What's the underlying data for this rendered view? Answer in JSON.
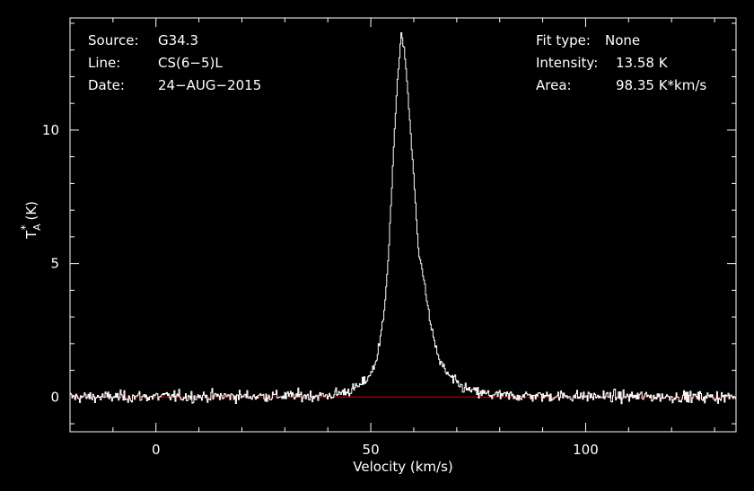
{
  "chart_data": {
    "type": "line",
    "xlabel": "Velocity (km/s)",
    "ylabel": "T",
    "ylabel_sub": "A",
    "ylabel_sup": "*",
    "ylabel_unit": "(K)",
    "xlim": [
      -20,
      135
    ],
    "ylim": [
      -1.3,
      14.2
    ],
    "xticks": [
      0,
      50,
      100
    ],
    "yticks": [
      0,
      5,
      10
    ],
    "grid": false,
    "colors": {
      "background": "#000000",
      "spectrum": "#ffffff",
      "baseline": "#cc0000",
      "axes": "#ffffff"
    },
    "baseline_value": 0,
    "info_left": [
      {
        "label": "Source:",
        "value": "G34.3"
      },
      {
        "label": "Line:",
        "value": "CS(6−5)L"
      },
      {
        "label": "Date:",
        "value": "24−AUG−2015"
      }
    ],
    "info_right": [
      {
        "label": "Fit type:",
        "value": "None"
      },
      {
        "label": "Intensity:",
        "value": "13.58 K"
      },
      {
        "label": "Area:",
        "value": "98.35 K*km/s"
      }
    ],
    "series": [
      {
        "noise_sigma": 0.15,
        "x": [
          -20,
          40,
          44,
          46,
          48,
          50,
          51,
          52,
          53,
          54,
          55,
          56,
          57,
          58,
          59,
          60,
          61,
          62,
          63,
          64,
          65,
          66,
          68,
          70,
          72,
          75,
          80,
          135
        ],
        "y": [
          0,
          0.05,
          0.2,
          0.3,
          0.5,
          0.9,
          1.3,
          2.0,
          3.2,
          5.3,
          8.5,
          11.7,
          13.58,
          12.6,
          10.3,
          8.0,
          5.4,
          4.7,
          3.6,
          2.5,
          1.9,
          1.3,
          0.8,
          0.5,
          0.3,
          0.15,
          0.05,
          0
        ]
      }
    ]
  }
}
